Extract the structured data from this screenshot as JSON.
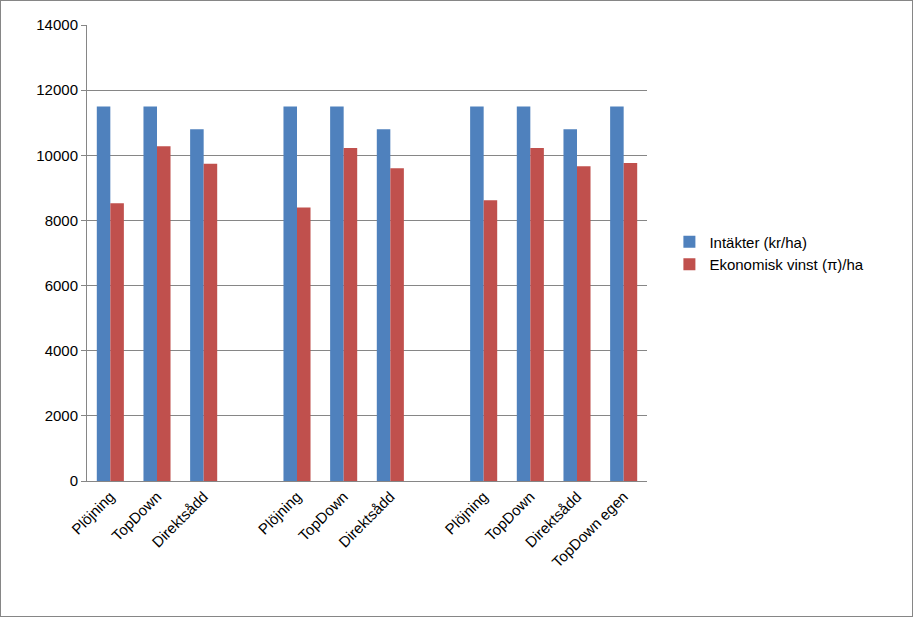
{
  "chart_data": {
    "type": "bar",
    "categories": [
      "Plöjning",
      "TopDown",
      "Direktsådd",
      null,
      "Plöjning",
      "TopDown",
      "Direktsådd",
      null,
      "Plöjning",
      "TopDown",
      "Direktsådd",
      "TopDown egen"
    ],
    "series": [
      {
        "name": "Intäkter (kr/ha)",
        "color": "#4f81bd",
        "values": [
          11500,
          11500,
          10800,
          null,
          11500,
          11500,
          10800,
          null,
          11500,
          11500,
          10800,
          11500
        ]
      },
      {
        "name": "Ekonomisk vinst (π)/ha",
        "color": "#c0504d",
        "values": [
          8530,
          10280,
          9740,
          null,
          8400,
          10220,
          9600,
          null,
          8620,
          10220,
          9660,
          9760
        ]
      }
    ],
    "ylim": [
      0,
      14000
    ],
    "yticks": [
      0,
      2000,
      4000,
      6000,
      8000,
      10000,
      12000,
      14000
    ],
    "grid": true,
    "legend": "right"
  }
}
